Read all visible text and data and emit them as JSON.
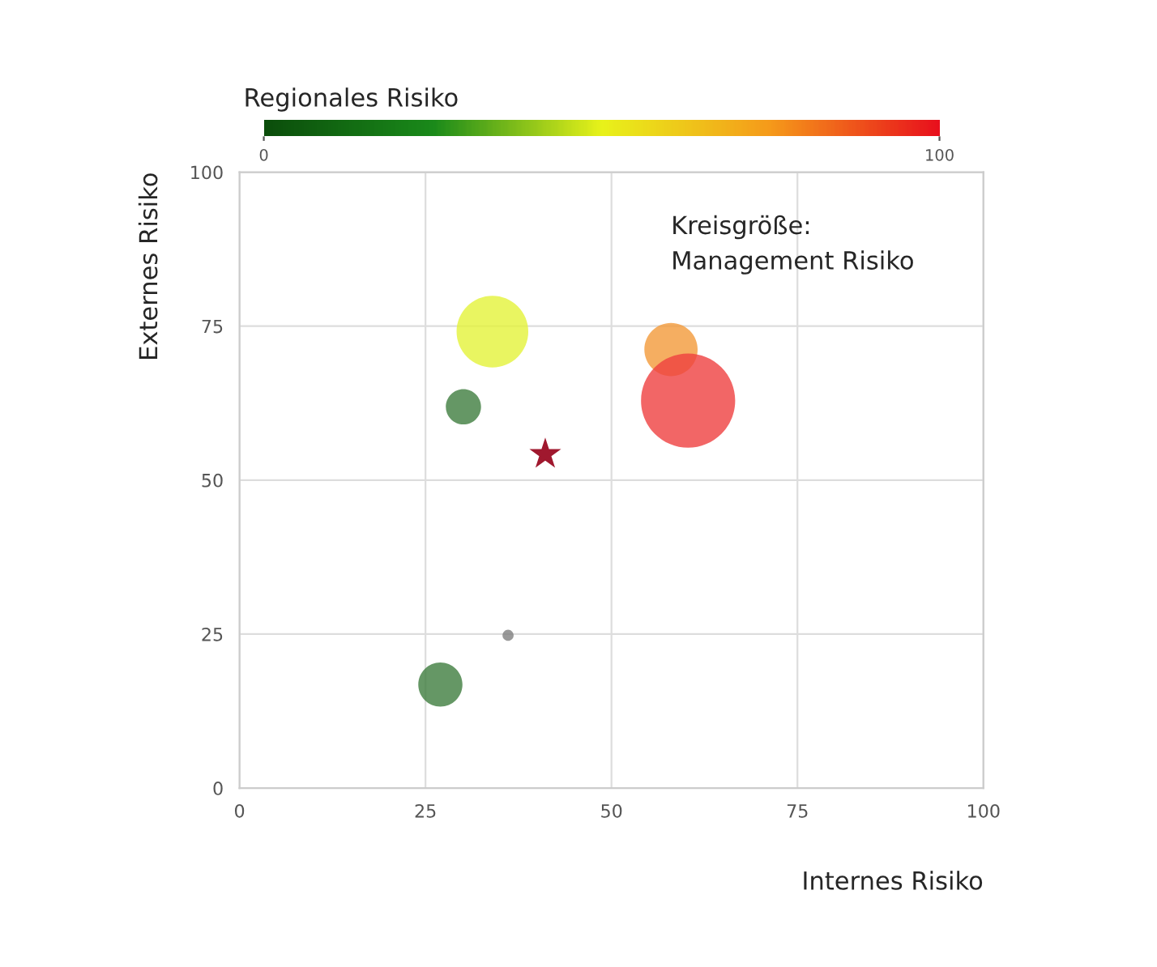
{
  "chart_data": {
    "type": "bubble",
    "xlabel": "Internes Risiko",
    "ylabel": "Externes Risiko",
    "clabel": "Regionales Risiko",
    "annotations": [
      "Kreisgröße:\nManagement Risiko"
    ],
    "xlim": [
      0,
      100
    ],
    "xticks": [
      0,
      25,
      50,
      75,
      100
    ],
    "ylim": [
      0,
      100
    ],
    "yticks": [
      0,
      25,
      50,
      75,
      100
    ],
    "clim": [
      0,
      100
    ],
    "cticks": [
      0,
      100
    ],
    "grid": true,
    "legend": false,
    "series": [
      {
        "marker": "circle",
        "x": [
          34.0,
          30.1,
          58.0,
          60.3,
          27.0
        ],
        "values": [
          74.1,
          61.9,
          71.2,
          62.9,
          16.8
        ],
        "sizes": [
          0.58,
          0.14,
          0.32,
          1,
          0.22
        ],
        "colors": [
          "#e4f23a",
          "#3f7d3f",
          "#f29a3a",
          "#ef4040",
          "#3f7d3f"
        ]
      },
      {
        "marker": "circle",
        "color": "#808080",
        "x": [
          36.1
        ],
        "values": [
          24.8
        ],
        "sizes": [
          0.014
        ]
      },
      {
        "type": "scatter",
        "marker": "star",
        "color": "#a0182e",
        "x": [
          41.1
        ],
        "values": [
          54.2
        ]
      }
    ]
  }
}
